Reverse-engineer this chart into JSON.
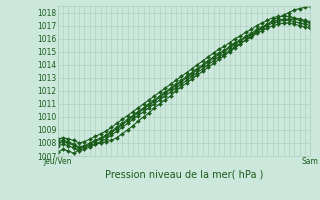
{
  "title": "",
  "xlabel": "Pression niveau de la mer( hPa )",
  "ylabel": "",
  "background_color": "#cce8dc",
  "grid_color": "#aaccbb",
  "line_color": "#1a5c1a",
  "ylim": [
    1007,
    1018.5
  ],
  "xlim": [
    0,
    47
  ],
  "yticks": [
    1007,
    1008,
    1009,
    1010,
    1011,
    1012,
    1013,
    1014,
    1015,
    1016,
    1017,
    1018
  ],
  "xtick_positions": [
    0,
    47
  ],
  "xtick_labels": [
    "Jeu/Ven",
    "Sam"
  ],
  "series": [
    [
      1007.3,
      1007.5,
      1007.4,
      1007.2,
      1007.5,
      1007.7,
      1007.8,
      1007.9,
      1008.0,
      1008.1,
      1008.2,
      1008.4,
      1008.7,
      1009.0,
      1009.3,
      1009.7,
      1010.0,
      1010.3,
      1010.7,
      1011.0,
      1011.3,
      1011.6,
      1012.0,
      1012.3,
      1012.6,
      1012.9,
      1013.2,
      1013.5,
      1013.8,
      1014.1,
      1014.4,
      1014.7,
      1015.0,
      1015.3,
      1015.6,
      1015.9,
      1016.2,
      1016.5,
      1016.8,
      1017.1,
      1017.4,
      1017.6,
      1017.8,
      1018.0,
      1018.2,
      1018.3,
      1018.4,
      1018.5
    ],
    [
      1008.1,
      1008.2,
      1008.1,
      1007.9,
      1007.7,
      1007.8,
      1008.0,
      1008.2,
      1008.4,
      1008.6,
      1008.9,
      1009.2,
      1009.5,
      1009.8,
      1010.1,
      1010.4,
      1010.7,
      1011.0,
      1011.3,
      1011.6,
      1011.9,
      1012.2,
      1012.5,
      1012.8,
      1013.1,
      1013.4,
      1013.7,
      1014.0,
      1014.3,
      1014.6,
      1014.9,
      1015.1,
      1015.4,
      1015.7,
      1015.9,
      1016.2,
      1016.4,
      1016.7,
      1016.9,
      1017.1,
      1017.3,
      1017.4,
      1017.5,
      1017.5,
      1017.5,
      1017.4,
      1017.3,
      1017.2
    ],
    [
      1008.0,
      1008.1,
      1008.0,
      1007.8,
      1007.6,
      1007.7,
      1007.9,
      1008.1,
      1008.3,
      1008.5,
      1008.8,
      1009.1,
      1009.4,
      1009.7,
      1010.0,
      1010.3,
      1010.6,
      1010.9,
      1011.2,
      1011.5,
      1011.8,
      1012.1,
      1012.4,
      1012.7,
      1013.0,
      1013.3,
      1013.6,
      1013.9,
      1014.2,
      1014.5,
      1014.8,
      1015.0,
      1015.3,
      1015.6,
      1015.8,
      1016.1,
      1016.3,
      1016.6,
      1016.8,
      1017.0,
      1017.2,
      1017.3,
      1017.4,
      1017.4,
      1017.3,
      1017.2,
      1017.1,
      1017.0
    ],
    [
      1008.3,
      1008.4,
      1008.3,
      1008.2,
      1008.0,
      1008.1,
      1008.3,
      1008.5,
      1008.7,
      1008.9,
      1009.2,
      1009.5,
      1009.8,
      1010.1,
      1010.4,
      1010.7,
      1011.0,
      1011.3,
      1011.6,
      1011.9,
      1012.2,
      1012.5,
      1012.8,
      1013.1,
      1013.4,
      1013.7,
      1014.0,
      1014.3,
      1014.6,
      1014.9,
      1015.2,
      1015.4,
      1015.7,
      1016.0,
      1016.2,
      1016.5,
      1016.7,
      1017.0,
      1017.2,
      1017.4,
      1017.6,
      1017.7,
      1017.7,
      1017.7,
      1017.6,
      1017.5,
      1017.4,
      1017.3
    ],
    [
      1007.8,
      1007.9,
      1007.8,
      1007.6,
      1007.4,
      1007.5,
      1007.7,
      1007.9,
      1008.1,
      1008.3,
      1008.6,
      1008.9,
      1009.2,
      1009.5,
      1009.8,
      1010.1,
      1010.4,
      1010.7,
      1011.0,
      1011.3,
      1011.6,
      1011.9,
      1012.2,
      1012.5,
      1012.8,
      1013.1,
      1013.4,
      1013.7,
      1014.0,
      1014.3,
      1014.6,
      1014.8,
      1015.1,
      1015.4,
      1015.6,
      1015.9,
      1016.1,
      1016.4,
      1016.6,
      1016.8,
      1017.0,
      1017.1,
      1017.2,
      1017.2,
      1017.1,
      1017.0,
      1016.9,
      1016.8
    ]
  ],
  "marker": "D",
  "markersize": 2.0,
  "linewidth": 0.8,
  "xlabel_fontsize": 7.0,
  "tick_fontsize": 5.5
}
